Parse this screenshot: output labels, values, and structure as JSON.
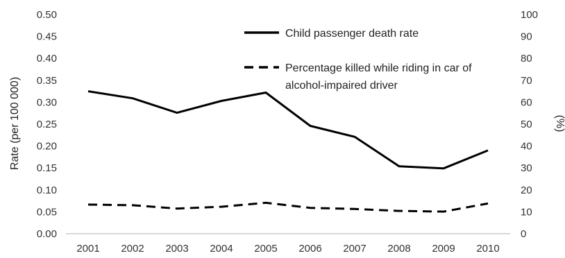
{
  "chart_data": {
    "type": "line",
    "x": [
      "2001",
      "2002",
      "2003",
      "2004",
      "2005",
      "2006",
      "2007",
      "2008",
      "2009",
      "2010"
    ],
    "series": [
      {
        "name": "Child passenger death rate",
        "axis": "left",
        "style": "solid",
        "values": [
          0.325,
          0.309,
          0.276,
          0.303,
          0.322,
          0.246,
          0.221,
          0.154,
          0.149,
          0.19
        ]
      },
      {
        "name_lines": [
          "Percentage killed while riding in car of",
          "alcohol-impaired driver"
        ],
        "axis": "right",
        "style": "dashed",
        "values": [
          13.3,
          13.0,
          11.5,
          12.3,
          14.1,
          11.8,
          11.3,
          10.4,
          10.1,
          13.8
        ]
      }
    ],
    "ylabel": "Rate (per 100 000)",
    "y2label": "(%)",
    "ylim": [
      0,
      0.5
    ],
    "y2lim": [
      0,
      100
    ],
    "y_ticks": [
      "0.00",
      "0.05",
      "0.10",
      "0.15",
      "0.20",
      "0.25",
      "0.30",
      "0.35",
      "0.40",
      "0.45",
      "0.50"
    ],
    "y2_ticks": [
      "0",
      "10",
      "20",
      "30",
      "40",
      "50",
      "60",
      "70",
      "80",
      "90",
      "100"
    ],
    "grid": false,
    "legend_position": "top-right",
    "color": "#000000"
  }
}
